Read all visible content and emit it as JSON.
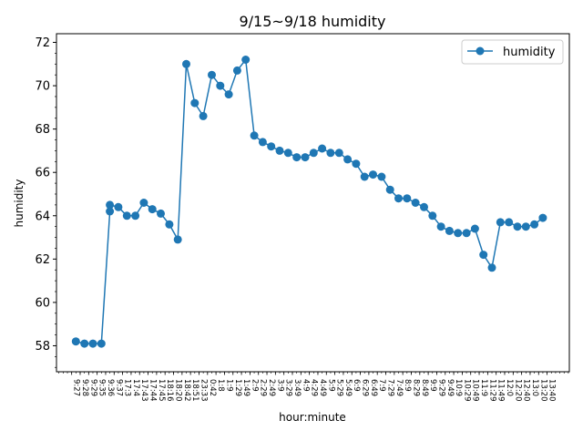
{
  "chart_data": {
    "type": "line",
    "title": "9/15~9/18 humidity",
    "xlabel": "hour:minute",
    "ylabel": "humidity",
    "ylim": [
      56.8,
      72.4
    ],
    "yticks": [
      58,
      60,
      62,
      64,
      66,
      68,
      70,
      72
    ],
    "legend_position": "top-right",
    "color": "#1f77b4",
    "categories": [
      "9:27",
      "9:28",
      "9:29",
      "9:35",
      "9:36",
      "9:37",
      "17:3",
      "17:4",
      "17:43",
      "17:44",
      "17:45",
      "18:16",
      "18:20",
      "18:42",
      "18:51",
      "23:33",
      "0:42",
      "1:8",
      "1:9",
      "1:29",
      "1:49",
      "2:9",
      "2:29",
      "2:49",
      "3:9",
      "3:29",
      "3:49",
      "4:9",
      "4:29",
      "4:49",
      "5:9",
      "5:29",
      "5:49",
      "6:9",
      "6:29",
      "6:49",
      "7:9",
      "7:29",
      "7:49",
      "8:9",
      "8:29",
      "8:49",
      "9:9",
      "9:29",
      "9:49",
      "10:9",
      "10:29",
      "10:49",
      "11:9",
      "11:29",
      "11:49",
      "12:0",
      "12:20",
      "12:40",
      "13:0",
      "13:20",
      "13:40"
    ],
    "series": [
      {
        "name": "humidity",
        "points": [
          [
            1,
            58.2
          ],
          [
            2,
            58.1
          ],
          [
            3,
            58.1
          ],
          [
            4,
            58.1
          ],
          [
            5,
            64.2
          ],
          [
            5,
            64.5
          ],
          [
            6,
            64.4
          ],
          [
            7,
            64.0
          ],
          [
            8,
            64.0
          ],
          [
            9,
            64.6
          ],
          [
            10,
            64.3
          ],
          [
            11,
            64.1
          ],
          [
            12,
            63.6
          ],
          [
            13,
            62.9
          ],
          [
            14,
            71.0
          ],
          [
            15,
            69.2
          ],
          [
            16,
            68.6
          ],
          [
            17,
            70.5
          ],
          [
            18,
            70.0
          ],
          [
            19,
            69.6
          ],
          [
            20,
            70.7
          ],
          [
            21,
            71.2
          ],
          [
            22,
            67.7
          ],
          [
            23,
            67.4
          ],
          [
            24,
            67.2
          ],
          [
            25,
            67.0
          ],
          [
            26,
            66.9
          ],
          [
            27,
            66.7
          ],
          [
            28,
            66.7
          ],
          [
            29,
            66.9
          ],
          [
            30,
            67.1
          ],
          [
            31,
            66.9
          ],
          [
            32,
            66.9
          ],
          [
            33,
            66.6
          ],
          [
            34,
            66.4
          ],
          [
            35,
            65.8
          ],
          [
            36,
            65.9
          ],
          [
            37,
            65.8
          ],
          [
            38,
            65.2
          ],
          [
            39,
            64.8
          ],
          [
            40,
            64.8
          ],
          [
            41,
            64.6
          ],
          [
            42,
            64.4
          ],
          [
            43,
            64.0
          ],
          [
            44,
            63.5
          ],
          [
            45,
            63.3
          ],
          [
            46,
            63.2
          ],
          [
            47,
            63.2
          ],
          [
            48,
            63.4
          ],
          [
            49,
            62.2
          ],
          [
            50,
            61.6
          ],
          [
            51,
            63.7
          ],
          [
            52,
            63.7
          ],
          [
            53,
            63.5
          ],
          [
            54,
            63.5
          ],
          [
            55,
            63.6
          ],
          [
            56,
            63.9
          ]
        ]
      }
    ]
  }
}
